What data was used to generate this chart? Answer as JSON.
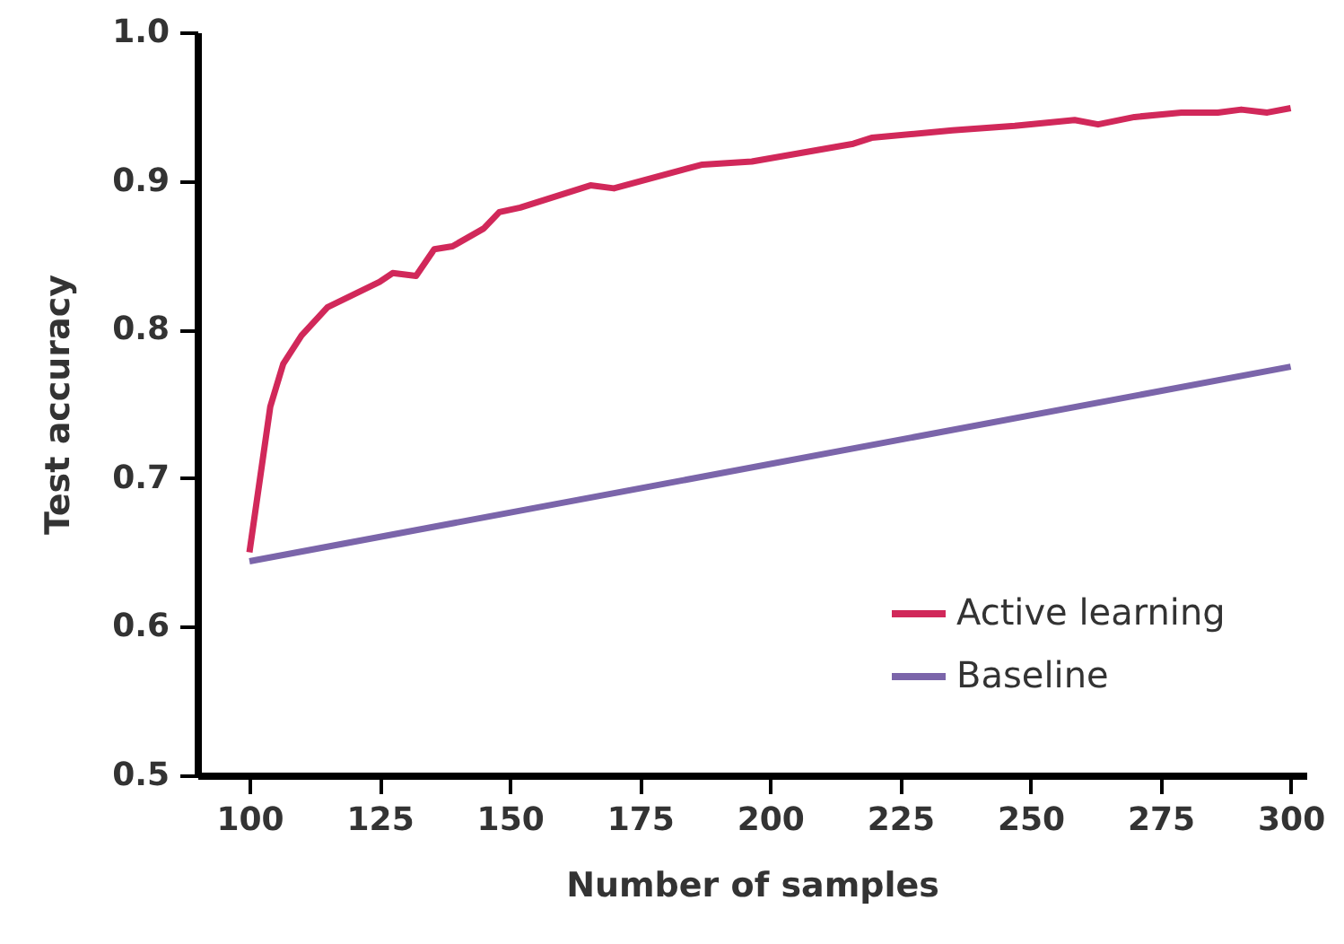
{
  "chart_data": {
    "type": "line",
    "xlabel": "Number of samples",
    "ylabel": "Test accuracy",
    "xlim": [
      90,
      303
    ],
    "xticks": [
      100,
      125,
      150,
      175,
      200,
      225,
      250,
      275,
      300
    ],
    "ylim": [
      0.5,
      1.0
    ],
    "yticks": [
      0.5,
      0.6,
      0.7,
      0.8,
      0.9,
      {
        "value": 1.0,
        "label": "1.0"
      }
    ],
    "legend": "bottom right",
    "grid": false,
    "series": [
      {
        "name": "Active learning",
        "color": "#d1285a",
        "x": [
          100,
          104,
          106.5,
          110,
          115,
          125,
          127.5,
          132,
          135.5,
          139,
          145,
          148,
          152,
          165.5,
          170,
          187,
          196.5,
          216,
          219.5,
          235,
          247,
          258.5,
          263,
          270,
          279,
          286,
          290.5,
          295.5,
          300
        ],
        "values": [
          0.65,
          0.748,
          0.777,
          0.796,
          0.815,
          0.832,
          0.838,
          0.836,
          0.854,
          0.856,
          0.868,
          0.879,
          0.882,
          0.897,
          0.895,
          0.911,
          0.913,
          0.925,
          0.929,
          0.934,
          0.937,
          0.941,
          0.938,
          0.943,
          0.946,
          0.946,
          0.948,
          0.946,
          0.949
        ]
      },
      {
        "name": "Baseline",
        "color": "#7b65aa",
        "x": [
          100,
          300
        ],
        "values": [
          0.644,
          0.775
        ]
      }
    ]
  }
}
